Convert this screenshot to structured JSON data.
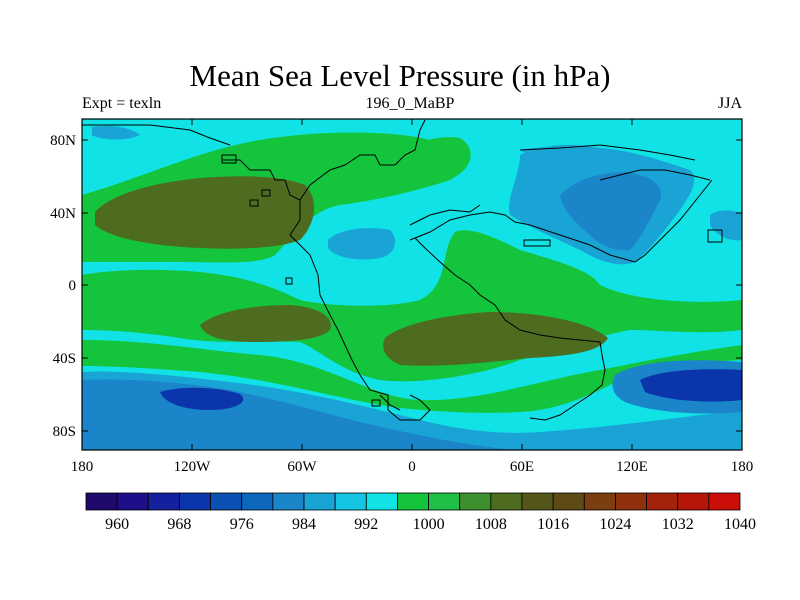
{
  "title": "Mean Sea Level Pressure (in hPa)",
  "subtitle_left": "Expt = texln",
  "subtitle_center": "196_0_MaBP",
  "subtitle_right": "JJA",
  "y_axis_labels": [
    "80N",
    "40N",
    "0",
    "40S",
    "80S"
  ],
  "x_axis_labels": [
    "180",
    "120W",
    "60W",
    "0",
    "60E",
    "120E",
    "180"
  ],
  "colorbar": {
    "labels": [
      "960",
      "968",
      "976",
      "984",
      "992",
      "1000",
      "1008",
      "1016",
      "1024",
      "1032",
      "1040"
    ],
    "colors": [
      "#1f0a6b",
      "#1d0e8a",
      "#14209e",
      "#0b35aa",
      "#0a50b5",
      "#0c67bd",
      "#1a85c9",
      "#1aa4d6",
      "#14c6e2",
      "#10e2e5",
      "#14c43c",
      "#1fbf48",
      "#3e8f2e",
      "#4e6c20",
      "#55571a",
      "#5e4a14",
      "#7a3e10",
      "#8f300c",
      "#a2220a",
      "#b51608",
      "#cc0e08"
    ]
  },
  "colors": {
    "bg_cyan": "#10e2e5",
    "light_blue": "#14c6e2",
    "mid_blue": "#1a85c9",
    "deep_blue": "#0b35aa",
    "green": "#14c43c",
    "olive": "#4e6c20"
  }
}
